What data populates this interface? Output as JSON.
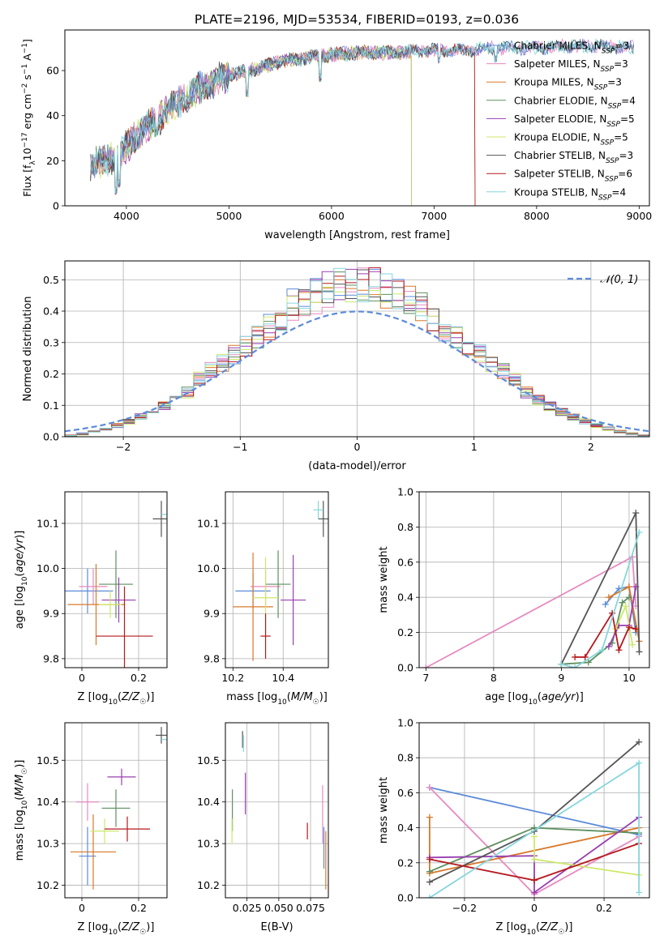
{
  "figure": {
    "title": "PLATE=2196, MJD=53534, FIBERID=0193, z=0.036"
  },
  "colors": {
    "Chabrier MILES": "#5b8bd9",
    "Salpeter MILES": "#e68ac0",
    "Kroupa MILES": "#d9782a",
    "Chabrier ELODIE": "#5e8f5e",
    "Salpeter ELODIE": "#9a3fb0",
    "Kroupa ELODIE": "#cde86a",
    "Chabrier STELIB": "#555555",
    "Salpeter STELIB": "#b5191e",
    "Kroupa STELIB": "#86d6dc"
  },
  "chart_data": [
    {
      "id": "spectrum",
      "type": "line",
      "title": "PLATE=2196, MJD=53534, FIBERID=0193, z=0.036",
      "xlabel": "wavelength [Angstrom, rest frame]",
      "ylabel": "Flux [f_λ 10^-17 erg cm^-2 s^-1 A^-1]",
      "xlim": [
        3400,
        9100
      ],
      "ylim": [
        0,
        78
      ],
      "xticks": [
        4000,
        5000,
        6000,
        7000,
        8000,
        9000
      ],
      "yticks": [
        0,
        20,
        40,
        60
      ],
      "grid": false,
      "legend_position": "top-right",
      "series": [
        {
          "name": "Chabrier MILES",
          "label": "Chabrier MILES, N_SSP=3",
          "x_range": [
            3650,
            8950
          ]
        },
        {
          "name": "Salpeter MILES",
          "label": "Salpeter MILES, N_SSP=3",
          "x_range": [
            3650,
            8950
          ]
        },
        {
          "name": "Kroupa MILES",
          "label": "Kroupa MILES, N_SSP=3",
          "x_range": [
            3650,
            7400
          ]
        },
        {
          "name": "Chabrier ELODIE",
          "label": "Chabrier ELODIE, N_SSP=4",
          "x_range": [
            3650,
            6780
          ]
        },
        {
          "name": "Salpeter ELODIE",
          "label": "Salpeter ELODIE, N_SSP=5",
          "x_range": [
            3650,
            6780
          ]
        },
        {
          "name": "Kroupa ELODIE",
          "label": "Kroupa ELODIE, N_SSP=5",
          "x_range": [
            3650,
            6780
          ]
        },
        {
          "name": "Chabrier STELIB",
          "label": "Chabrier STELIB, N_SSP=3",
          "x_range": [
            3650,
            8950
          ]
        },
        {
          "name": "Salpeter STELIB",
          "label": "Salpeter STELIB, N_SSP=6",
          "x_range": [
            3650,
            7400
          ]
        },
        {
          "name": "Kroupa STELIB",
          "label": "Kroupa STELIB, N_SSP=4",
          "x_range": [
            3650,
            8950
          ]
        }
      ],
      "continuum": {
        "x": [
          3650,
          3800,
          3900,
          4000,
          4100,
          4300,
          4500,
          4700,
          5000,
          5200,
          5500,
          5800,
          6000,
          6300,
          6600,
          7000,
          7300,
          7600,
          8000,
          8500,
          8950
        ],
        "y": [
          18,
          20,
          22,
          26,
          32,
          38,
          46,
          52,
          58,
          60,
          64,
          66,
          67,
          68,
          68,
          69,
          69,
          70,
          70,
          71,
          70
        ]
      },
      "spikes": [
        [
          3900,
          5
        ],
        [
          3933,
          8
        ],
        [
          4300,
          32
        ],
        [
          5175,
          48
        ],
        [
          5890,
          55
        ],
        [
          7050,
          62
        ],
        [
          7600,
          63
        ]
      ]
    },
    {
      "id": "residuals",
      "type": "histogram",
      "xlabel": "(data-model)/error",
      "ylabel": "Normed distribution",
      "xlim": [
        -2.5,
        2.5
      ],
      "ylim": [
        0,
        0.56
      ],
      "xticks": [
        -2,
        -1,
        0,
        1,
        2
      ],
      "yticks": [
        0.0,
        0.1,
        0.2,
        0.3,
        0.4,
        0.5
      ],
      "grid": true,
      "legend_position": "top-right",
      "legend": "𝒩(0, 1)",
      "bin_width": 0.1,
      "curve": {
        "name": "𝒩(0, 1)",
        "mu": 0,
        "sigma": 1
      },
      "series_hist": [
        {
          "name": "Chabrier MILES",
          "seed": 1
        },
        {
          "name": "Salpeter MILES",
          "seed": 2
        },
        {
          "name": "Kroupa MILES",
          "seed": 3
        },
        {
          "name": "Chabrier ELODIE",
          "seed": 4
        },
        {
          "name": "Salpeter ELODIE",
          "seed": 5
        },
        {
          "name": "Kroupa ELODIE",
          "seed": 6
        },
        {
          "name": "Chabrier STELIB",
          "seed": 7
        },
        {
          "name": "Salpeter STELIB",
          "seed": 8
        },
        {
          "name": "Kroupa STELIB",
          "seed": 9
        }
      ]
    },
    {
      "id": "age-vs-Z",
      "type": "scatter",
      "xlabel": "Z [log10(Z/Z☉)]",
      "ylabel": "age [log10(age/yr)]",
      "xlim": [
        -0.06,
        0.3
      ],
      "ylim": [
        9.78,
        10.17
      ],
      "xticks": [
        0.0,
        0.2
      ],
      "yticks": [
        9.8,
        9.9,
        10.0,
        10.1
      ],
      "grid": true,
      "points": [
        {
          "series": "Chabrier MILES",
          "x": 0.02,
          "y": 9.95,
          "xerr": 0.09,
          "yerr": 0.05
        },
        {
          "series": "Salpeter MILES",
          "x": 0.04,
          "y": 9.96,
          "xerr": 0.05,
          "yerr": 0.04
        },
        {
          "series": "Kroupa MILES",
          "x": 0.05,
          "y": 9.92,
          "xerr": 0.1,
          "yerr": 0.09
        },
        {
          "series": "Chabrier ELODIE",
          "x": 0.12,
          "y": 9.965,
          "xerr": 0.06,
          "yerr": 0.075
        },
        {
          "series": "Salpeter ELODIE",
          "x": 0.13,
          "y": 9.93,
          "xerr": 0.06,
          "yerr": 0.05
        },
        {
          "series": "Kroupa ELODIE",
          "x": 0.1,
          "y": 9.92,
          "xerr": 0.04,
          "yerr": 0.03
        },
        {
          "series": "Chabrier STELIB",
          "x": 0.28,
          "y": 10.11,
          "xerr": 0.03,
          "yerr": 0.04
        },
        {
          "series": "Salpeter STELIB",
          "x": 0.15,
          "y": 9.85,
          "xerr": 0.1,
          "yerr": 0.11
        },
        {
          "series": "Kroupa STELIB",
          "x": 0.3,
          "y": 10.12,
          "xerr": 0.02,
          "yerr": 0.02
        }
      ]
    },
    {
      "id": "age-vs-mass",
      "type": "scatter",
      "xlabel": "mass [log10(M/M☉)]",
      "ylabel": "",
      "xlim": [
        10.17,
        10.58
      ],
      "ylim": [
        9.78,
        10.17
      ],
      "xticks": [
        10.2,
        10.4
      ],
      "yticks": [
        9.8,
        9.9,
        10.0,
        10.1
      ],
      "grid": true,
      "points": [
        {
          "series": "Chabrier MILES",
          "x": 10.28,
          "y": 9.95,
          "xerr": 0.07,
          "yerr": 0.04
        },
        {
          "series": "Salpeter MILES",
          "x": 10.33,
          "y": 9.96,
          "xerr": 0.06,
          "yerr": 0.04
        },
        {
          "series": "Kroupa MILES",
          "x": 10.28,
          "y": 9.915,
          "xerr": 0.08,
          "yerr": 0.12
        },
        {
          "series": "Chabrier ELODIE",
          "x": 10.38,
          "y": 9.965,
          "xerr": 0.05,
          "yerr": 0.075
        },
        {
          "series": "Salpeter ELODIE",
          "x": 10.44,
          "y": 9.93,
          "xerr": 0.05,
          "yerr": 0.1
        },
        {
          "series": "Kroupa ELODIE",
          "x": 10.33,
          "y": 9.935,
          "xerr": 0.05,
          "yerr": 0.09
        },
        {
          "series": "Chabrier STELIB",
          "x": 10.56,
          "y": 10.11,
          "xerr": 0.02,
          "yerr": 0.04
        },
        {
          "series": "Salpeter STELIB",
          "x": 10.33,
          "y": 9.85,
          "xerr": 0.02,
          "yerr": 0.05
        },
        {
          "series": "Kroupa STELIB",
          "x": 10.54,
          "y": 10.13,
          "xerr": 0.02,
          "yerr": 0.02
        }
      ]
    },
    {
      "id": "mass-weight-vs-age",
      "type": "line",
      "xlabel": "age [log10(age/yr)]",
      "ylabel": "mass weight",
      "xlim": [
        6.9,
        10.3
      ],
      "ylim": [
        0,
        1
      ],
      "xticks": [
        7,
        8,
        9,
        10
      ],
      "yticks": [
        0.0,
        0.2,
        0.4,
        0.6,
        0.8,
        1.0
      ],
      "grid": true,
      "series": [
        {
          "name": "Chabrier MILES",
          "x": [
            9.65,
            9.85,
            10.0,
            10.1
          ],
          "y": [
            0.36,
            0.45,
            0.46,
            0.2
          ]
        },
        {
          "name": "Salpeter MILES",
          "x": [
            7.0,
            10.05,
            10.1
          ],
          "y": [
            0.0,
            0.63,
            0.35
          ]
        },
        {
          "name": "Kroupa MILES",
          "x": [
            9.7,
            10.0,
            10.15
          ],
          "y": [
            0.4,
            0.46,
            0.15
          ]
        },
        {
          "name": "Chabrier ELODIE",
          "x": [
            9.0,
            9.4,
            9.75,
            9.9,
            10.0
          ],
          "y": [
            0.02,
            0.03,
            0.14,
            0.37,
            0.4
          ]
        },
        {
          "name": "Salpeter ELODIE",
          "x": [
            9.7,
            9.85,
            10.0,
            10.1
          ],
          "y": [
            0.12,
            0.24,
            0.24,
            0.46
          ]
        },
        {
          "name": "Kroupa ELODIE",
          "x": [
            9.8,
            9.95,
            10.05
          ],
          "y": [
            0.22,
            0.35,
            0.13
          ]
        },
        {
          "name": "Chabrier STELIB",
          "x": [
            9.0,
            10.1,
            10.15
          ],
          "y": [
            0.02,
            0.88,
            0.09
          ]
        },
        {
          "name": "Salpeter STELIB",
          "x": [
            9.2,
            9.35,
            9.75,
            9.85,
            10.0,
            10.1
          ],
          "y": [
            0.06,
            0.06,
            0.31,
            0.1,
            0.23,
            0.22
          ]
        },
        {
          "name": "Kroupa STELIB",
          "x": [
            9.0,
            9.2,
            9.6,
            10.15
          ],
          "y": [
            0.02,
            0.0,
            0.1,
            0.77
          ]
        }
      ]
    },
    {
      "id": "mass-vs-Z",
      "type": "scatter",
      "xlabel": "Z [log10(Z/Z☉)]",
      "ylabel": "mass [log10(M/M☉)]",
      "xlim": [
        -0.06,
        0.3
      ],
      "ylim": [
        10.17,
        10.59
      ],
      "xticks": [
        0.0,
        0.2
      ],
      "yticks": [
        10.2,
        10.3,
        10.4,
        10.5
      ],
      "grid": true,
      "points": [
        {
          "series": "Chabrier MILES",
          "x": 0.02,
          "y": 10.27,
          "xerr": 0.03,
          "yerr": 0.07
        },
        {
          "series": "Salpeter MILES",
          "x": 0.02,
          "y": 10.4,
          "xerr": 0.04,
          "yerr": 0.045
        },
        {
          "series": "Kroupa MILES",
          "x": 0.04,
          "y": 10.28,
          "xerr": 0.08,
          "yerr": 0.09
        },
        {
          "series": "Chabrier ELODIE",
          "x": 0.12,
          "y": 10.385,
          "xerr": 0.05,
          "yerr": 0.045
        },
        {
          "series": "Salpeter ELODIE",
          "x": 0.14,
          "y": 10.46,
          "xerr": 0.05,
          "yerr": 0.02
        },
        {
          "series": "Kroupa ELODIE",
          "x": 0.08,
          "y": 10.33,
          "xerr": 0.05,
          "yerr": 0.03
        },
        {
          "series": "Chabrier STELIB",
          "x": 0.28,
          "y": 10.56,
          "xerr": 0.02,
          "yerr": 0.02
        },
        {
          "series": "Salpeter STELIB",
          "x": 0.16,
          "y": 10.335,
          "xerr": 0.08,
          "yerr": 0.03
        },
        {
          "series": "Kroupa STELIB",
          "x": 0.3,
          "y": 10.55,
          "xerr": 0.02,
          "yerr": 0.02
        }
      ]
    },
    {
      "id": "mass-vs-EBV",
      "type": "scatter",
      "xlabel": "E(B-V)",
      "ylabel": "",
      "xlim": [
        0.008,
        0.089
      ],
      "ylim": [
        10.17,
        10.59
      ],
      "xticks": [
        0.025,
        0.05,
        0.075
      ],
      "xticklabels": [
        "0.025",
        "0.050",
        "0.075"
      ],
      "yticks": [
        10.2,
        10.3,
        10.4,
        10.5
      ],
      "grid": true,
      "points": [
        {
          "series": "Chabrier ELODIE",
          "x": 0.0135,
          "y": 10.38,
          "xerr": 0,
          "yerr": 0.05
        },
        {
          "series": "Kroupa ELODIE",
          "x": 0.0132,
          "y": 10.33,
          "xerr": 0,
          "yerr": 0.03
        },
        {
          "series": "Chabrier STELIB",
          "x": 0.0215,
          "y": 10.55,
          "xerr": 0,
          "yerr": 0.02
        },
        {
          "series": "Kroupa STELIB",
          "x": 0.0222,
          "y": 10.54,
          "xerr": 0,
          "yerr": 0.02
        },
        {
          "series": "Salpeter ELODIE",
          "x": 0.0237,
          "y": 10.42,
          "xerr": 0,
          "yerr": 0.05
        },
        {
          "series": "Salpeter STELIB",
          "x": 0.0725,
          "y": 10.33,
          "xerr": 0,
          "yerr": 0.02
        },
        {
          "series": "Salpeter MILES",
          "x": 0.0845,
          "y": 10.37,
          "xerr": 0,
          "yerr": 0.07
        },
        {
          "series": "Chabrier MILES",
          "x": 0.0855,
          "y": 10.29,
          "xerr": 0,
          "yerr": 0.05
        },
        {
          "series": "Kroupa MILES",
          "x": 0.087,
          "y": 10.26,
          "xerr": 0,
          "yerr": 0.07
        }
      ]
    },
    {
      "id": "mass-weight-vs-Z",
      "type": "line",
      "xlabel": "Z [log10(Z/Z☉)]",
      "ylabel": "mass weight",
      "xlim": [
        -0.33,
        0.33
      ],
      "ylim": [
        0,
        1
      ],
      "xticks": [
        -0.2,
        0.0,
        0.2
      ],
      "yticks": [
        0.0,
        0.2,
        0.4,
        0.6,
        0.8,
        1.0
      ],
      "grid": true,
      "series": [
        {
          "name": "Chabrier MILES",
          "x": [
            -0.3,
            0.3
          ],
          "y": [
            0.63,
            0.36
          ]
        },
        {
          "name": "Salpeter MILES",
          "x": [
            -0.3,
            0.0,
            0.3
          ],
          "y": [
            0.63,
            0.02,
            0.35
          ]
        },
        {
          "name": "Kroupa MILES",
          "x": [
            -0.3,
            -0.3,
            0.3
          ],
          "y": [
            0.46,
            0.14,
            0.4
          ]
        },
        {
          "name": "Chabrier ELODIE",
          "x": [
            -0.3,
            0.0,
            0.3
          ],
          "y": [
            0.15,
            0.4,
            0.37
          ]
        },
        {
          "name": "Salpeter ELODIE",
          "x": [
            -0.3,
            0.0,
            0.0,
            0.3
          ],
          "y": [
            0.23,
            0.24,
            0.03,
            0.46
          ]
        },
        {
          "name": "Kroupa ELODIE",
          "x": [
            0.0,
            0.0,
            0.3
          ],
          "y": [
            0.35,
            0.22,
            0.13
          ]
        },
        {
          "name": "Chabrier STELIB",
          "x": [
            -0.3,
            0.0,
            0.3
          ],
          "y": [
            0.09,
            0.38,
            0.89
          ]
        },
        {
          "name": "Salpeter STELIB",
          "x": [
            -0.3,
            0.0,
            0.3
          ],
          "y": [
            0.22,
            0.1,
            0.31
          ]
        },
        {
          "name": "Kroupa STELIB",
          "x": [
            -0.3,
            0.3,
            0.3
          ],
          "y": [
            0.0,
            0.77,
            0.03
          ]
        }
      ]
    }
  ]
}
